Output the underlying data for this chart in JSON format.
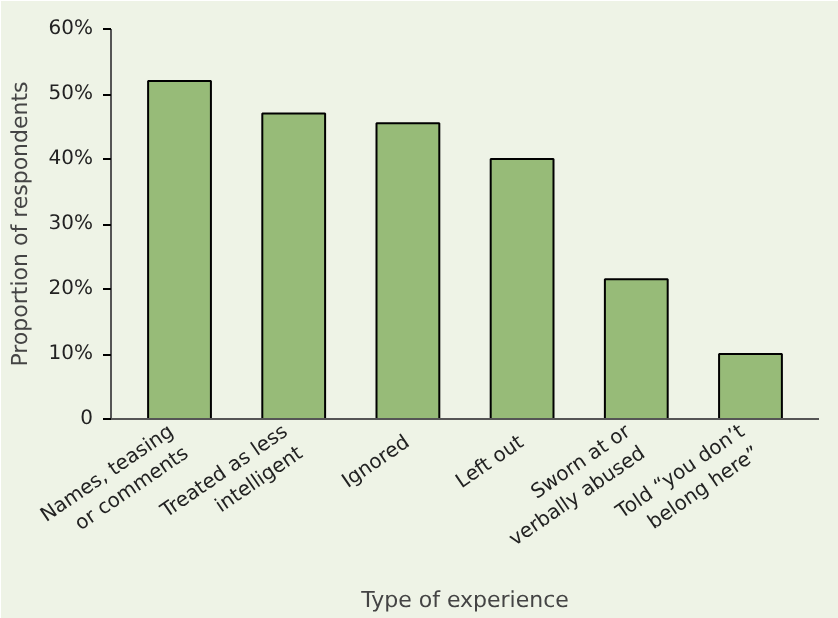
{
  "chart_data": {
    "type": "bar",
    "xlabel": "Type of experience",
    "ylabel": "Proportion of respondents",
    "categories": [
      "Names, teasing or comments",
      "Treated as less intelligent",
      "Ignored",
      "Left out",
      "Sworn at or verbally abused",
      "Told “you don’t belong here”"
    ],
    "values": [
      52,
      47,
      45.5,
      40,
      21.5,
      10
    ],
    "color": "#97bb78",
    "ylim": [
      0,
      60
    ],
    "yticks": [
      0,
      {
        "value": 10,
        "label": "10%"
      },
      {
        "value": 20,
        "label": "20%"
      },
      {
        "value": 30,
        "label": "30%"
      },
      {
        "value": 40,
        "label": "40%"
      },
      {
        "value": 50,
        "label": "50%"
      },
      {
        "value": 60,
        "label": "60%"
      }
    ],
    "grid": false
  }
}
